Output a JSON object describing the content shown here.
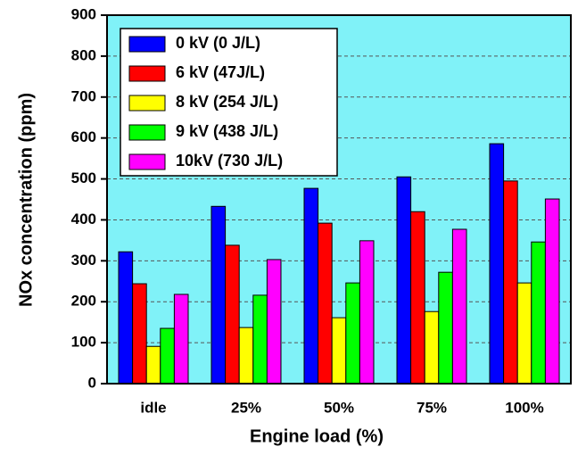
{
  "chart_data": {
    "type": "bar",
    "x_label": "Engine load (%)",
    "y_label": "NOx concentration (ppm)",
    "categories": [
      "idle",
      "25%",
      "50%",
      "75%",
      "100%"
    ],
    "series": [
      {
        "name": "0 kV (0 J/L)",
        "color": "#0000ff",
        "values": [
          322,
          433,
          477,
          505,
          586
        ]
      },
      {
        "name": "6 kV (47J/L)",
        "color": "#ff0000",
        "values": [
          244,
          338,
          392,
          420,
          495
        ]
      },
      {
        "name": "8 kV (254 J/L)",
        "color": "#ffff00",
        "values": [
          91,
          137,
          161,
          176,
          246
        ]
      },
      {
        "name": "9 kV (438 J/L)",
        "color": "#00ff00",
        "values": [
          135,
          216,
          246,
          272,
          346
        ]
      },
      {
        "name": "10kV (730 J/L)",
        "color": "#ff00ff",
        "values": [
          218,
          303,
          349,
          377,
          451
        ]
      }
    ],
    "ylim": [
      0,
      900
    ],
    "yticks": [
      0,
      100,
      200,
      300,
      400,
      500,
      600,
      700,
      800,
      900
    ],
    "grid": true,
    "legend": "upper-left",
    "background": "#80f2f8"
  }
}
